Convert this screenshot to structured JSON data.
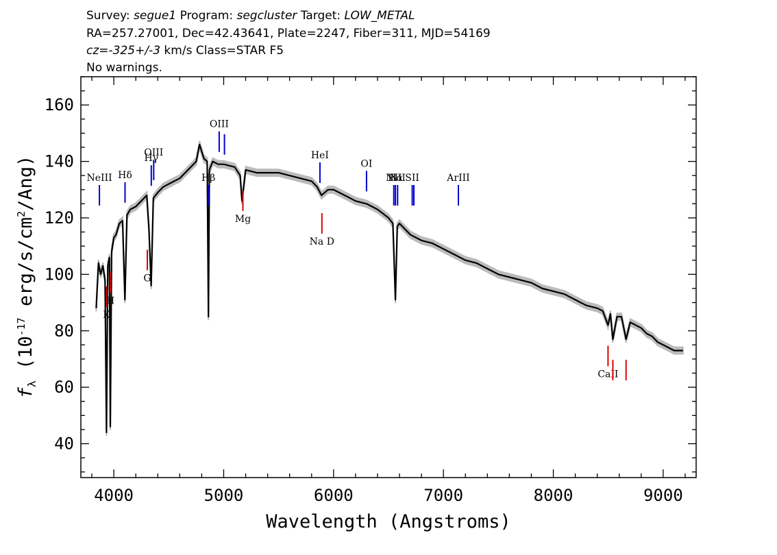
{
  "header": {
    "line1": {
      "survey_label": "Survey:",
      "survey": "segue1",
      "program_label": "Program:",
      "program": "segcluster",
      "target_label": "Target:",
      "target": "LOW_METAL"
    },
    "line2": "RA=257.27001, Dec=42.43641, Plate=2247, Fiber=311, MJD=54169",
    "line3": {
      "cz": "cz=-325+/-3",
      "rest": " km/s Class=STAR F5"
    },
    "line4": "No warnings."
  },
  "chart_data": {
    "type": "line",
    "xlabel": "Wavelength (Angstroms)",
    "ylabel": "f_λ (10^-17 erg/s/cm^2/Ang)",
    "xlim": [
      3700,
      9300
    ],
    "ylim": [
      28,
      170
    ],
    "x_ticks": [
      4000,
      5000,
      6000,
      7000,
      8000,
      9000
    ],
    "y_ticks": [
      40,
      60,
      80,
      100,
      120,
      140,
      160
    ],
    "colors": {
      "spectrum": "#000000",
      "error_band": "#bbbbbb",
      "emission_lines": "#0000cc",
      "absorption_lines": "#dd0000"
    },
    "series": [
      {
        "x": [
          3840,
          3860,
          3880,
          3900,
          3920,
          3933,
          3945,
          3960,
          3968,
          3980,
          4000,
          4020,
          4050,
          4080,
          4101,
          4120,
          4150,
          4200,
          4250,
          4300,
          4320,
          4340,
          4360,
          4400,
          4450,
          4500,
          4550,
          4600,
          4650,
          4700,
          4750,
          4780,
          4820,
          4850,
          4861,
          4870,
          4900,
          4950,
          5000,
          5100,
          5150,
          5167,
          5200,
          5300,
          5400,
          5500,
          5600,
          5700,
          5800,
          5850,
          5890,
          5920,
          5950,
          6000,
          6100,
          6200,
          6300,
          6400,
          6500,
          6540,
          6563,
          6580,
          6600,
          6700,
          6800,
          6900,
          7000,
          7100,
          7200,
          7300,
          7400,
          7500,
          7600,
          7700,
          7800,
          7900,
          8000,
          8100,
          8200,
          8300,
          8400,
          8450,
          8498,
          8520,
          8542,
          8580,
          8620,
          8662,
          8700,
          8800,
          8850,
          8900,
          8950,
          9000,
          9050,
          9100,
          9150,
          9180
        ],
        "y": [
          88,
          104,
          100,
          103,
          98,
          44,
          103,
          106,
          46,
          108,
          113,
          114,
          118,
          119,
          91,
          121,
          123,
          124,
          126,
          128,
          116,
          96,
          127,
          129,
          131,
          132,
          133,
          134,
          136,
          138,
          140,
          146,
          141,
          140,
          85,
          137,
          140,
          139,
          139,
          138,
          135,
          126,
          137,
          136,
          136,
          136,
          135,
          134,
          133,
          131,
          128,
          129,
          130,
          130,
          128,
          126,
          125,
          123,
          120,
          118,
          91,
          117,
          118,
          114,
          112,
          111,
          109,
          107,
          105,
          104,
          102,
          100,
          99,
          98,
          97,
          95,
          94,
          93,
          91,
          89,
          88,
          87,
          82,
          86,
          77,
          85,
          85,
          77,
          83,
          81,
          79,
          78,
          76,
          75,
          74,
          73,
          73,
          73
        ]
      }
    ],
    "emission_lines": [
      {
        "name": "NeIII",
        "wavelength": 3869
      },
      {
        "name": "Hδ",
        "wavelength": 4102
      },
      {
        "name": "Hγ",
        "wavelength": 4341
      },
      {
        "name": "OIII",
        "wavelength": 4363
      },
      {
        "name": "Hβ",
        "wavelength": 4861
      },
      {
        "name": "OIII",
        "wavelength": 4959
      },
      {
        "name": "OIII",
        "wavelength": 5007
      },
      {
        "name": "HeI",
        "wavelength": 5876
      },
      {
        "name": "OI",
        "wavelength": 6300
      },
      {
        "name": "NII",
        "wavelength": 6548
      },
      {
        "name": "Hα",
        "wavelength": 6563
      },
      {
        "name": "NII",
        "wavelength": 6583
      },
      {
        "name": "SII",
        "wavelength": 6716
      },
      {
        "name": "SII",
        "wavelength": 6731
      },
      {
        "name": "ArIII",
        "wavelength": 7136
      }
    ],
    "absorption_lines": [
      {
        "name": "K",
        "wavelength": 3934
      },
      {
        "name": "H",
        "wavelength": 3969
      },
      {
        "name": "G",
        "wavelength": 4305
      },
      {
        "name": "Mg",
        "wavelength": 5175
      },
      {
        "name": "Na D",
        "wavelength": 5894
      },
      {
        "name": "CaII",
        "wavelength": 8498
      },
      {
        "name": "CaII",
        "wavelength": 8542
      },
      {
        "name": "CaII",
        "wavelength": 8662
      }
    ]
  }
}
